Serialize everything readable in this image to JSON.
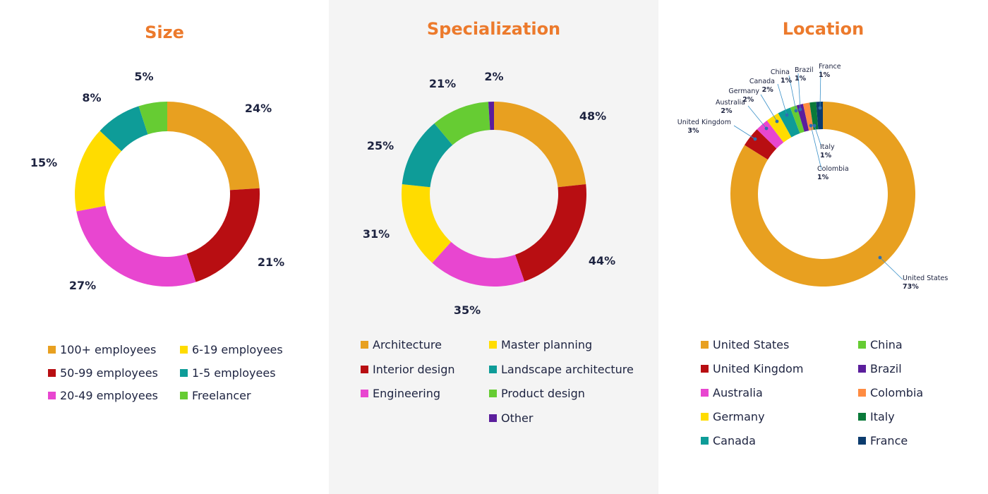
{
  "chart_data": [
    {
      "type": "pie",
      "title": "Size",
      "slices": [
        {
          "label": "100+ employees",
          "value": 24,
          "value_label": "24%",
          "color": "#e8a020"
        },
        {
          "label": "50-99 employees",
          "value": 21,
          "value_label": "21%",
          "color": "#b80e12"
        },
        {
          "label": "20-49 employees",
          "value": 27,
          "value_label": "27%",
          "color": "#e846d0"
        },
        {
          "label": "6-19 employees",
          "value": 15,
          "value_label": "15%",
          "color": "#ffdc00"
        },
        {
          "label": "1-5 employees",
          "value": 8,
          "value_label": "8%",
          "color": "#0e9c98"
        },
        {
          "label": "Freelancer",
          "value": 5,
          "value_label": "5%",
          "color": "#66cc33"
        }
      ],
      "legend_columns": [
        [
          "100+ employees",
          "50-99 employees",
          "20-49 employees"
        ],
        [
          "6-19 employees",
          "1-5 employees",
          "Freelancer"
        ]
      ]
    },
    {
      "type": "pie",
      "title": "Specialization",
      "slices": [
        {
          "label": "Architecture",
          "value": 48,
          "value_label": "48%",
          "color": "#e8a020"
        },
        {
          "label": "Interior design",
          "value": 44,
          "value_label": "44%",
          "color": "#b80e12"
        },
        {
          "label": "Engineering",
          "value": 35,
          "value_label": "35%",
          "color": "#e846d0"
        },
        {
          "label": "Master planning",
          "value": 31,
          "value_label": "31%",
          "color": "#ffdc00"
        },
        {
          "label": "Landscape architecture",
          "value": 25,
          "value_label": "25%",
          "color": "#0e9c98"
        },
        {
          "label": "Product design",
          "value": 21,
          "value_label": "21%",
          "color": "#66cc33"
        },
        {
          "label": "Other",
          "value": 2,
          "value_label": "2%",
          "color": "#5b1e9c"
        }
      ],
      "legend_columns": [
        [
          "Architecture",
          "Interior design",
          "Engineering"
        ],
        [
          "Master planning",
          "Landscape architecture",
          "Product design",
          "Other"
        ]
      ]
    },
    {
      "type": "pie",
      "title": "Location",
      "slices": [
        {
          "label": "United States",
          "value": 73,
          "value_label": "73%",
          "color": "#e8a020"
        },
        {
          "label": "United Kingdom",
          "value": 3,
          "value_label": "3%",
          "color": "#b80e12"
        },
        {
          "label": "Australia",
          "value": 2,
          "value_label": "2%",
          "color": "#e846d0"
        },
        {
          "label": "Germany",
          "value": 2,
          "value_label": "2%",
          "color": "#ffdc00"
        },
        {
          "label": "Canada",
          "value": 2,
          "value_label": "2%",
          "color": "#0e9c98"
        },
        {
          "label": "China",
          "value": 1,
          "value_label": "1%",
          "color": "#66cc33"
        },
        {
          "label": "Brazil",
          "value": 1,
          "value_label": "1%",
          "color": "#5b1e9c"
        },
        {
          "label": "Colombia",
          "value": 1,
          "value_label": "1%",
          "color": "#ff8c42"
        },
        {
          "label": "Italy",
          "value": 1,
          "value_label": "1%",
          "color": "#0a7a3a"
        },
        {
          "label": "France",
          "value": 1,
          "value_label": "1%",
          "color": "#0c3c6e"
        }
      ],
      "legend_columns": [
        [
          "United States",
          "United Kingdom",
          "Australia",
          "Germany",
          "Canada"
        ],
        [
          "China",
          "Brazil",
          "Colombia",
          "Italy",
          "France"
        ]
      ]
    }
  ]
}
